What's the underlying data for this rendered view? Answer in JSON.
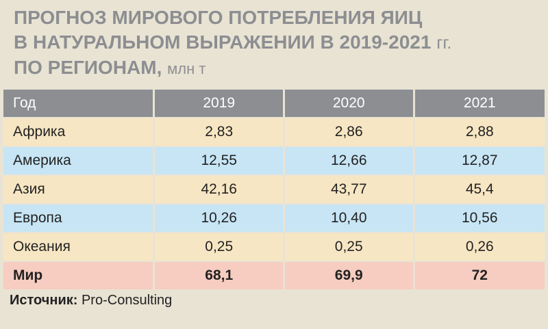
{
  "title": {
    "line1": "ПРОГНОЗ МИРОВОГО ПОТРЕБЛЕНИЯ ЯИЦ",
    "line2_bold": "В НАТУРАЛЬНОМ ВЫРАЖЕНИИ В 2019-2021",
    "line2_light": "гг.",
    "line3_bold": "ПО РЕГИОНАМ,",
    "line3_light": "млн т"
  },
  "chart_data": {
    "type": "table",
    "columns": [
      "Год",
      "2019",
      "2020",
      "2021"
    ],
    "rows": [
      {
        "region": "Африка",
        "values": [
          "2,83",
          "2,86",
          "2,88"
        ]
      },
      {
        "region": "Америка",
        "values": [
          "12,55",
          "12,66",
          "12,87"
        ]
      },
      {
        "region": "Азия",
        "values": [
          "42,16",
          "43,77",
          "45,4"
        ]
      },
      {
        "region": "Европа",
        "values": [
          "10,26",
          "10,40",
          "10,56"
        ]
      },
      {
        "region": "Океания",
        "values": [
          "0,25",
          "0,25",
          "0,26"
        ]
      },
      {
        "region": "Мир",
        "values": [
          "68,1",
          "69,9",
          "72"
        ]
      }
    ]
  },
  "source": {
    "label": "Источник:",
    "text": "Pro-Consulting"
  },
  "colors": {
    "header": "#8c8e91",
    "row_beige": "#f7e6c3",
    "row_blue": "#c7e5f4",
    "row_total": "#f6cdc0",
    "background": "#e9e3d4"
  }
}
